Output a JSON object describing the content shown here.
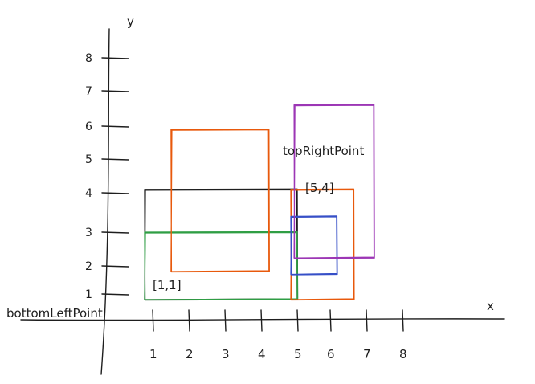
{
  "axes": {
    "x_label": "x",
    "y_label": "y",
    "x_ticks": [
      "1",
      "2",
      "3",
      "4",
      "5",
      "6",
      "7",
      "8"
    ],
    "y_ticks": [
      "1",
      "2",
      "3",
      "4",
      "5",
      "6",
      "7",
      "8"
    ]
  },
  "points": {
    "bottom_left": {
      "name": "bottomLeftPoint",
      "coord": "[1,1]"
    },
    "top_right": {
      "name": "topRightPoint",
      "coord": "[5,4]"
    }
  },
  "rectangles": [
    {
      "id": "black",
      "color": "#1e1e1e",
      "x1": 1,
      "y1": 1,
      "x2": 5,
      "y2": 4.1
    },
    {
      "id": "green",
      "color": "#2f9e44",
      "x1": 1,
      "y1": 1,
      "x2": 5,
      "y2": 3
    },
    {
      "id": "orange-left",
      "color": "#e8590c",
      "x1": 1.7,
      "y1": 2,
      "x2": 4.2,
      "y2": 5.9
    },
    {
      "id": "orange-right",
      "color": "#e8590c",
      "x1": 5,
      "y1": 1,
      "x2": 6.7,
      "y2": 4.1
    },
    {
      "id": "blue",
      "color": "#364fc7",
      "x1": 5,
      "y1": 1.9,
      "x2": 6.2,
      "y2": 3.4
    },
    {
      "id": "purple",
      "color": "#9c36b5",
      "x1": 5.1,
      "y1": 2.4,
      "x2": 7.3,
      "y2": 6.6
    }
  ]
}
